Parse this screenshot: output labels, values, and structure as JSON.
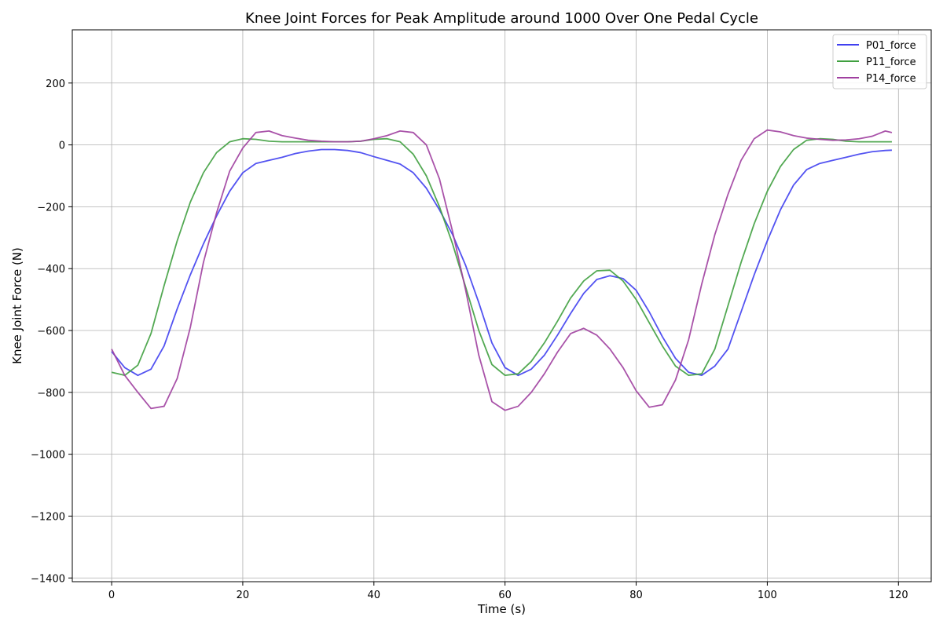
{
  "chart_data": {
    "type": "line",
    "title": "Knee Joint Forces for Peak Amplitude around 1000 Over One Pedal Cycle",
    "xlabel": "Time (s)",
    "ylabel": "Knee Joint Force (N)",
    "xlim": [
      -6,
      125
    ],
    "ylim": [
      -1412,
      372
    ],
    "xticks": [
      0,
      20,
      40,
      60,
      80,
      100,
      120
    ],
    "yticks": [
      -1400,
      -1200,
      -1000,
      -800,
      -600,
      -400,
      -200,
      0,
      200
    ],
    "xtick_labels": [
      "0",
      "20",
      "40",
      "60",
      "80",
      "100",
      "120"
    ],
    "ytick_labels": [
      "−1400",
      "−1200",
      "−1000",
      "−800",
      "−600",
      "−400",
      "−200",
      "0",
      "200"
    ],
    "grid": true,
    "legend_position": "top-right",
    "x": [
      0,
      2,
      4,
      6,
      8,
      10,
      12,
      14,
      16,
      18,
      20,
      22,
      24,
      26,
      28,
      30,
      32,
      34,
      36,
      38,
      40,
      42,
      44,
      46,
      48,
      50,
      52,
      54,
      56,
      58,
      60,
      62,
      64,
      66,
      68,
      70,
      72,
      74,
      76,
      78,
      80,
      82,
      84,
      86,
      88,
      90,
      92,
      94,
      96,
      98,
      100,
      102,
      104,
      106,
      108,
      110,
      112,
      114,
      116,
      118,
      119
    ],
    "series": [
      {
        "name": "P01_force",
        "color": "#4040f0",
        "values": [
          -668,
          -720,
          -745,
          -725,
          -650,
          -530,
          -420,
          -320,
          -230,
          -150,
          -90,
          -60,
          -50,
          -40,
          -28,
          -20,
          -15,
          -15,
          -18,
          -25,
          -38,
          -50,
          -62,
          -90,
          -140,
          -210,
          -290,
          -390,
          -510,
          -640,
          -720,
          -745,
          -725,
          -680,
          -615,
          -545,
          -480,
          -435,
          -423,
          -432,
          -470,
          -540,
          -620,
          -690,
          -735,
          -745,
          -715,
          -660,
          -540,
          -420,
          -310,
          -210,
          -130,
          -80,
          -60,
          -50,
          -40,
          -30,
          -22,
          -18,
          -17
        ]
      },
      {
        "name": "P11_force",
        "color": "#40a040",
        "values": [
          -735,
          -745,
          -712,
          -610,
          -455,
          -310,
          -185,
          -90,
          -25,
          10,
          20,
          18,
          12,
          10,
          10,
          10,
          10,
          10,
          10,
          12,
          18,
          20,
          10,
          -30,
          -100,
          -200,
          -320,
          -460,
          -600,
          -710,
          -745,
          -740,
          -700,
          -640,
          -570,
          -495,
          -440,
          -407,
          -405,
          -440,
          -500,
          -575,
          -650,
          -715,
          -745,
          -740,
          -660,
          -520,
          -380,
          -255,
          -150,
          -70,
          -15,
          15,
          20,
          18,
          12,
          10,
          10,
          10,
          10
        ]
      },
      {
        "name": "P14_force",
        "color": "#a040a0",
        "values": [
          -660,
          -745,
          -800,
          -852,
          -845,
          -755,
          -590,
          -380,
          -220,
          -85,
          -10,
          40,
          45,
          30,
          22,
          15,
          12,
          10,
          10,
          12,
          20,
          30,
          45,
          40,
          0,
          -110,
          -280,
          -470,
          -680,
          -830,
          -858,
          -845,
          -800,
          -740,
          -670,
          -610,
          -593,
          -615,
          -660,
          -720,
          -795,
          -848,
          -840,
          -760,
          -630,
          -450,
          -290,
          -160,
          -50,
          20,
          48,
          42,
          30,
          22,
          18,
          15,
          16,
          20,
          28,
          45,
          40
        ]
      }
    ]
  }
}
